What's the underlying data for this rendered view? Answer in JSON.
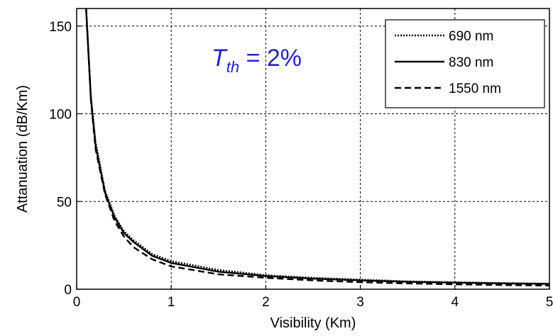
{
  "chart_data": {
    "type": "line",
    "title": "",
    "xlabel": "Visibility (Km)",
    "ylabel": "Attanuation (dB/Km)",
    "xlim": [
      0,
      5
    ],
    "ylim": [
      0,
      160
    ],
    "xticks": [
      0,
      1,
      2,
      3,
      4,
      5
    ],
    "yticks": [
      0,
      50,
      100,
      150
    ],
    "grid": true,
    "grid_style": "dotted",
    "legend_position": "top-right",
    "annotation": {
      "symbol": "T",
      "subscript": "th",
      "text": " = 2%",
      "color": "#1f1fe0"
    },
    "series": [
      {
        "name": "690 nm",
        "line_style": "dotted",
        "x": [
          0.1,
          0.15,
          0.2,
          0.3,
          0.4,
          0.5,
          0.6,
          0.8,
          1.0,
          1.5,
          2.0,
          2.5,
          3.0,
          3.5,
          4.0,
          4.5,
          5.0
        ],
        "y": [
          160,
          110,
          84,
          56,
          42,
          33,
          28,
          20,
          16,
          11,
          8,
          6.5,
          5.5,
          4.5,
          4.0,
          3.5,
          3.2
        ]
      },
      {
        "name": "830 nm",
        "line_style": "solid",
        "x": [
          0.1,
          0.15,
          0.2,
          0.3,
          0.4,
          0.5,
          0.6,
          0.8,
          1.0,
          1.5,
          2.0,
          2.5,
          3.0,
          3.5,
          4.0,
          4.5,
          5.0
        ],
        "y": [
          160,
          109,
          82,
          55,
          41,
          32,
          27,
          19,
          15,
          10,
          7.5,
          6,
          5,
          4.2,
          3.7,
          3.3,
          3.0
        ]
      },
      {
        "name": "1550 nm",
        "line_style": "dashed",
        "x": [
          0.1,
          0.15,
          0.2,
          0.3,
          0.4,
          0.5,
          0.6,
          0.8,
          1.0,
          1.5,
          2.0,
          2.5,
          3.0,
          3.5,
          4.0,
          4.5,
          5.0
        ],
        "y": [
          160,
          108,
          80,
          54,
          39,
          30,
          24,
          17,
          13,
          8.5,
          6.5,
          5,
          4,
          3.3,
          2.8,
          2.4,
          2.1
        ]
      }
    ]
  }
}
